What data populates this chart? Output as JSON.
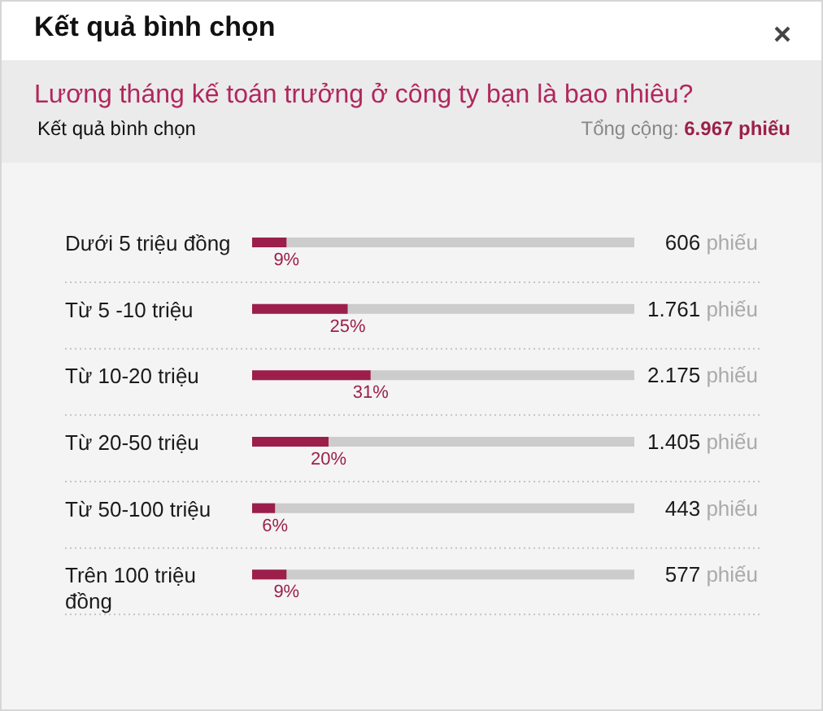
{
  "chart_data": {
    "type": "bar",
    "orientation": "horizontal",
    "title": "Kết quả bình chọn",
    "subtitle": "Lương tháng kế toán trưởng ở công ty bạn là bao nhiêu?",
    "categories": [
      "Dưới 5 triệu đồng",
      "Từ 5 -10 triệu",
      "Từ 10-20 triệu",
      "Từ 20-50 triệu",
      "Từ 50-100 triệu",
      "Trên 100 triệu đồng"
    ],
    "values": [
      9,
      25,
      31,
      20,
      6,
      9
    ],
    "value_labels": [
      "9%",
      "25%",
      "31%",
      "20%",
      "6%",
      "9%"
    ],
    "color": "#9c1f4b",
    "xlim": [
      0,
      100
    ],
    "tick_labels": "y",
    "annotations": [
      "Kết quả bình chọn",
      "Tổng cộng: 6.967 phiếu",
      "606 phiếu",
      "1.761 phiếu",
      "2.175 phiếu",
      "1.405 phiếu",
      "443 phiếu",
      "577 phiếu"
    ]
  }
}
